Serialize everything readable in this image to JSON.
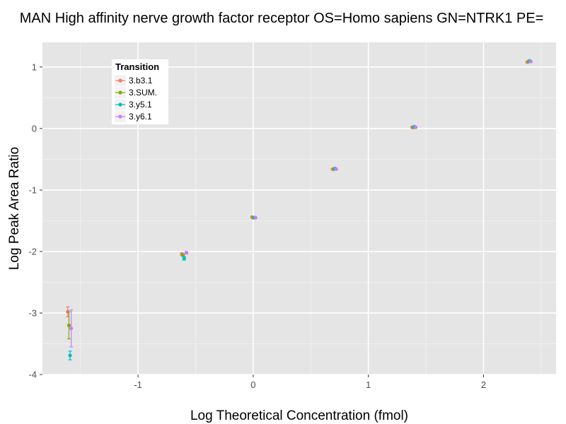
{
  "chart_data": {
    "type": "scatter",
    "title": "MAN High affinity nerve growth factor receptor OS=Homo sapiens GN=NTRK1 PE=",
    "xlabel": "Log Theoretical Concentration (fmol)",
    "ylabel": "Log Peak Area Ratio",
    "xlim": [
      -1.83,
      2.63
    ],
    "ylim": [
      -4.0,
      1.4
    ],
    "x_ticks": [
      -1,
      0,
      1,
      2
    ],
    "y_ticks": [
      -4,
      -3,
      -2,
      -1,
      0,
      1
    ],
    "legend": {
      "title": "Transition",
      "position": "top-left"
    },
    "series": [
      {
        "name": "3.b3.1",
        "color": "#F8766D",
        "x": [
          -1.61,
          -0.62,
          -0.01,
          0.69,
          1.38,
          2.38
        ],
        "y": [
          -2.98,
          -2.04,
          -1.44,
          -0.66,
          0.02,
          1.08
        ],
        "err": [
          0.08,
          0.02,
          0.01,
          0.01,
          0.01,
          0.01
        ]
      },
      {
        "name": "3.SUM.",
        "color": "#7CAE00",
        "x": [
          -1.6,
          -0.61,
          0.0,
          0.7,
          1.39,
          2.39
        ],
        "y": [
          -3.2,
          -2.06,
          -1.45,
          -0.66,
          0.02,
          1.09
        ],
        "err": [
          0.22,
          0.02,
          0.01,
          0.01,
          0.01,
          0.01
        ]
      },
      {
        "name": "3.y5.1",
        "color": "#00BFC4",
        "x": [
          -1.59,
          -0.6,
          0.01,
          0.71,
          1.4,
          2.4
        ],
        "y": [
          -3.69,
          -2.11,
          -1.45,
          -0.65,
          0.03,
          1.1
        ],
        "err": [
          0.07,
          0.03,
          0.01,
          0.01,
          0.01,
          0.01
        ]
      },
      {
        "name": "3.y6.1",
        "color": "#C77CFF",
        "x": [
          -1.58,
          -0.58,
          0.02,
          0.72,
          1.41,
          2.41
        ],
        "y": [
          -3.25,
          -2.02,
          -1.45,
          -0.66,
          0.02,
          1.09
        ],
        "err": [
          0.3,
          0.02,
          0.01,
          0.01,
          0.01,
          0.01
        ]
      }
    ]
  }
}
